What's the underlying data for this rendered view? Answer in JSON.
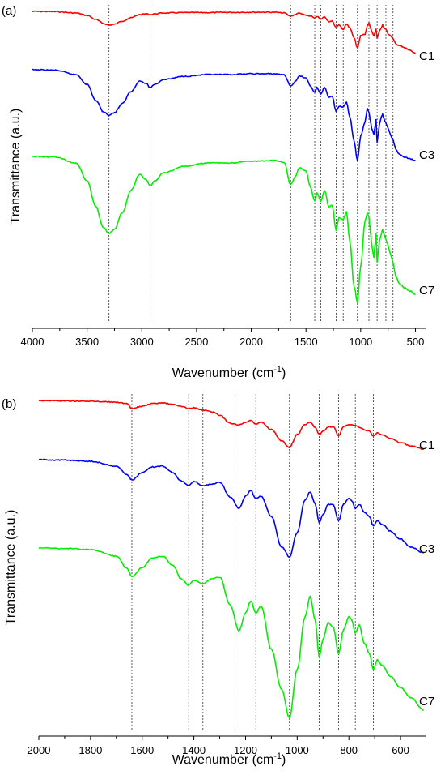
{
  "chart_data": [
    {
      "type": "line",
      "panel_label": "(a)",
      "xlabel_main": "Wavenumber (cm",
      "xlabel_sup": "-1",
      "xlabel_close": ")",
      "ylabel": "Transmittance (a.u.)",
      "xlim": [
        4000,
        400
      ],
      "x_reversed": true,
      "grid": false,
      "xticks": [
        4000,
        3500,
        3000,
        2500,
        2000,
        1500,
        1000,
        500
      ],
      "xtick_labels": [
        "4000",
        "3500",
        "3000",
        "2500",
        "2000",
        "1500",
        "1000",
        "500"
      ],
      "reference_lines": [
        3300,
        2925,
        1640,
        1420,
        1365,
        1225,
        1160,
        1030,
        925,
        850,
        770,
        705
      ],
      "series": [
        {
          "name": "C1",
          "color": "#ff0000",
          "baseline": 0,
          "wavenumber": [
            4000,
            3800,
            3600,
            3500,
            3420,
            3350,
            3300,
            3250,
            3180,
            3100,
            3020,
            2960,
            2925,
            2880,
            2800,
            2600,
            2400,
            2200,
            2000,
            1800,
            1700,
            1640,
            1600,
            1560,
            1500,
            1460,
            1420,
            1400,
            1365,
            1330,
            1290,
            1260,
            1225,
            1200,
            1160,
            1130,
            1100,
            1060,
            1030,
            1000,
            960,
            940,
            925,
            900,
            880,
            860,
            850,
            830,
            810,
            800,
            790,
            770,
            750,
            730,
            705,
            680,
            650,
            600,
            550,
            500
          ],
          "absorbance": [
            0,
            0.3,
            2,
            5,
            10,
            15,
            17,
            16,
            12,
            8,
            4,
            3,
            4,
            3,
            2,
            1.5,
            1.5,
            1.2,
            1,
            1,
            2,
            6,
            4,
            2,
            5,
            6,
            8,
            6,
            10,
            7,
            13,
            12,
            20,
            16,
            22,
            16,
            20,
            33,
            45,
            30,
            28,
            18,
            14,
            25,
            30,
            22,
            33,
            25,
            20,
            16,
            20,
            22,
            28,
            30,
            34,
            40,
            42,
            45,
            48,
            52
          ]
        },
        {
          "name": "C3",
          "color": "#0000ff",
          "baseline": 0,
          "wavenumber": [
            4000,
            3800,
            3600,
            3500,
            3420,
            3350,
            3300,
            3250,
            3180,
            3100,
            3020,
            2960,
            2925,
            2880,
            2800,
            2600,
            2400,
            2200,
            2000,
            1800,
            1700,
            1640,
            1600,
            1560,
            1500,
            1460,
            1420,
            1400,
            1365,
            1330,
            1290,
            1260,
            1225,
            1200,
            1160,
            1130,
            1100,
            1060,
            1030,
            1000,
            960,
            940,
            925,
            900,
            880,
            860,
            850,
            830,
            810,
            800,
            790,
            770,
            750,
            730,
            705,
            680,
            650,
            600,
            550,
            500
          ],
          "absorbance": [
            0,
            0.5,
            6,
            18,
            38,
            52,
            56,
            53,
            42,
            27,
            14,
            17,
            22,
            18,
            12,
            8,
            6,
            6,
            5,
            5,
            6,
            20,
            15,
            8,
            10,
            20,
            28,
            22,
            30,
            22,
            34,
            32,
            52,
            45,
            46,
            40,
            58,
            88,
            112,
            82,
            65,
            48,
            52,
            72,
            80,
            62,
            90,
            68,
            58,
            55,
            60,
            66,
            72,
            80,
            86,
            98,
            104,
            108,
            110,
            112
          ]
        },
        {
          "name": "C7",
          "color": "#00ee00",
          "baseline": 0,
          "wavenumber": [
            4000,
            3800,
            3600,
            3500,
            3420,
            3350,
            3300,
            3250,
            3180,
            3100,
            3020,
            2960,
            2925,
            2880,
            2800,
            2600,
            2400,
            2200,
            2000,
            1800,
            1700,
            1640,
            1600,
            1560,
            1500,
            1460,
            1420,
            1400,
            1365,
            1330,
            1290,
            1260,
            1225,
            1200,
            1160,
            1130,
            1100,
            1060,
            1030,
            1000,
            960,
            940,
            925,
            900,
            880,
            860,
            850,
            830,
            810,
            800,
            790,
            770,
            750,
            730,
            705,
            680,
            650,
            600,
            550,
            500
          ],
          "absorbance": [
            0,
            0.5,
            8,
            30,
            62,
            88,
            95,
            90,
            70,
            42,
            22,
            28,
            36,
            30,
            20,
            12,
            8,
            8,
            6,
            5,
            7,
            35,
            25,
            14,
            18,
            38,
            55,
            45,
            55,
            42,
            62,
            60,
            92,
            75,
            78,
            68,
            105,
            160,
            180,
            135,
            80,
            70,
            75,
            108,
            125,
            95,
            130,
            105,
            95,
            90,
            95,
            102,
            110,
            120,
            130,
            148,
            156,
            162,
            166,
            170
          ]
        }
      ]
    },
    {
      "type": "line",
      "panel_label": "(b)",
      "xlabel_main": "Wavenumber (cm",
      "xlabel_sup": "-1",
      "xlabel_close": ")",
      "ylabel": "Transmittance (a.u.)",
      "xlim": [
        2000,
        500
      ],
      "x_reversed": true,
      "grid": false,
      "xticks": [
        2000,
        1800,
        1600,
        1400,
        1200,
        1000,
        800,
        600
      ],
      "xtick_labels": [
        "2000",
        "1800",
        "1600",
        "1400",
        "1200",
        "1000",
        "800",
        "600"
      ],
      "reference_lines": [
        1640,
        1420,
        1365,
        1225,
        1160,
        1030,
        915,
        840,
        775,
        705
      ],
      "series": [
        {
          "name": "C1",
          "color": "#ff0000",
          "baseline": 0,
          "wavenumber": [
            2000,
            1900,
            1800,
            1700,
            1660,
            1640,
            1600,
            1560,
            1520,
            1480,
            1450,
            1420,
            1400,
            1365,
            1330,
            1300,
            1260,
            1225,
            1200,
            1180,
            1160,
            1140,
            1100,
            1060,
            1030,
            1000,
            970,
            950,
            930,
            915,
            900,
            880,
            860,
            840,
            820,
            800,
            790,
            775,
            760,
            740,
            720,
            705,
            690,
            670,
            640,
            600,
            560,
            510
          ],
          "absorbance": [
            0,
            0.5,
            1,
            2,
            4,
            10,
            7,
            4,
            3,
            5,
            7,
            10,
            9,
            12,
            14,
            18,
            28,
            30,
            27,
            25,
            29,
            27,
            36,
            50,
            58,
            42,
            30,
            27,
            33,
            42,
            38,
            33,
            32,
            44,
            32,
            30,
            30,
            31,
            33,
            36,
            38,
            44,
            40,
            42,
            47,
            52,
            56,
            60
          ]
        },
        {
          "name": "C3",
          "color": "#0000ff",
          "baseline": 0,
          "wavenumber": [
            2000,
            1900,
            1800,
            1700,
            1660,
            1640,
            1600,
            1560,
            1520,
            1480,
            1450,
            1420,
            1400,
            1365,
            1330,
            1300,
            1260,
            1225,
            1200,
            1180,
            1160,
            1140,
            1100,
            1060,
            1030,
            1000,
            970,
            950,
            930,
            915,
            900,
            880,
            860,
            840,
            820,
            800,
            790,
            775,
            760,
            740,
            720,
            705,
            690,
            670,
            640,
            600,
            560,
            510
          ],
          "absorbance": [
            0,
            0.5,
            2,
            8,
            18,
            25,
            16,
            9,
            8,
            16,
            26,
            32,
            27,
            32,
            30,
            28,
            46,
            60,
            45,
            38,
            48,
            45,
            70,
            108,
            120,
            90,
            50,
            40,
            55,
            78,
            68,
            55,
            56,
            76,
            55,
            48,
            50,
            60,
            55,
            65,
            70,
            82,
            75,
            80,
            88,
            98,
            108,
            115
          ]
        },
        {
          "name": "C7",
          "color": "#00ee00",
          "baseline": 0,
          "wavenumber": [
            2000,
            1900,
            1800,
            1700,
            1660,
            1640,
            1600,
            1560,
            1520,
            1480,
            1450,
            1420,
            1400,
            1365,
            1330,
            1300,
            1260,
            1225,
            1200,
            1180,
            1160,
            1140,
            1100,
            1060,
            1030,
            1000,
            970,
            950,
            930,
            915,
            900,
            880,
            860,
            840,
            820,
            800,
            790,
            775,
            760,
            740,
            720,
            705,
            690,
            670,
            640,
            600,
            560,
            510
          ],
          "absorbance": [
            0,
            0.5,
            2,
            10,
            25,
            35,
            24,
            12,
            10,
            22,
            38,
            46,
            40,
            44,
            38,
            36,
            70,
            102,
            80,
            65,
            80,
            72,
            125,
            175,
            210,
            150,
            85,
            60,
            90,
            135,
            112,
            92,
            98,
            130,
            100,
            85,
            88,
            105,
            95,
            118,
            130,
            150,
            138,
            145,
            158,
            172,
            185,
            200
          ]
        }
      ]
    }
  ]
}
